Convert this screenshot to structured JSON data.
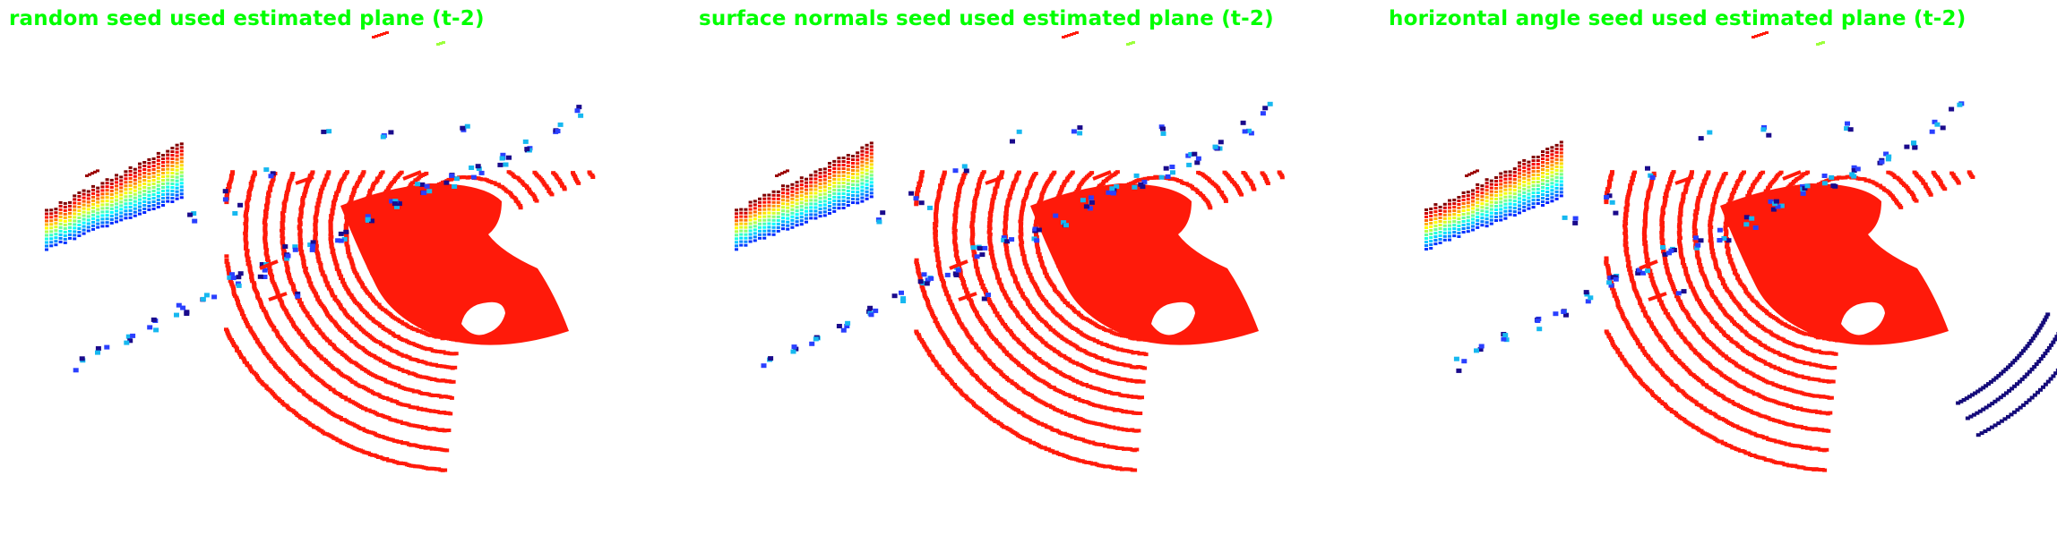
{
  "panels": [
    {
      "title": "random seed used estimated plane (t-2)",
      "highlight_ground_segment": false
    },
    {
      "title": "surface normals seed used estimated plane (t-2)",
      "highlight_ground_segment": false
    },
    {
      "title": "horizontal angle seed used estimated plane (t-2)",
      "highlight_ground_segment": true
    }
  ],
  "colors": {
    "background": "#ffffff",
    "title_text": "#00ff00",
    "ground_points": "#ff1a0a",
    "non_ground_dark": "#1a0a8c",
    "non_ground_blue": "#2a40ff",
    "non_ground_cyan": "#16b8f0",
    "highlight_dark": "#140a7a"
  },
  "render_size": {
    "width": 2296,
    "height": 598
  }
}
